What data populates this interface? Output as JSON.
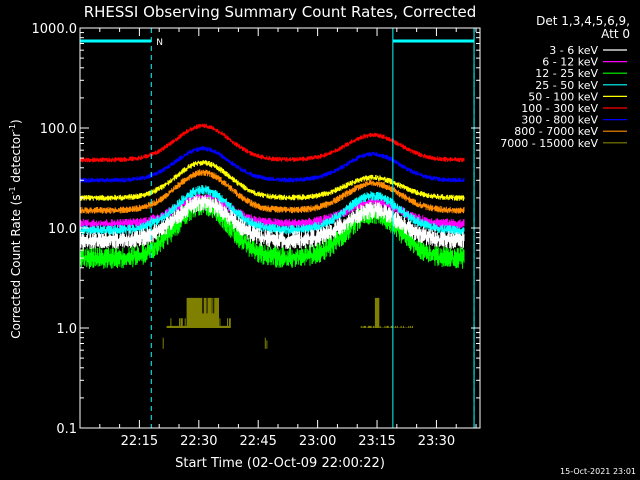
{
  "chart_data": {
    "type": "line",
    "title": "RHESSI Observing Summary Count Rates, Corrected",
    "xlabel": "Start Time (02-Oct-09 22:00:22)",
    "ylabel_main": "Corrected Count Rate (s",
    "ylabel_sup1": "-1",
    "ylabel_mid": " detector",
    "ylabel_sup2": "-1",
    "ylabel_end": ")",
    "x_ticks": [
      "22:15",
      "22:30",
      "22:45",
      "23:00",
      "23:15",
      "23:30"
    ],
    "x_tick_minutes": [
      15,
      30,
      45,
      60,
      75,
      90
    ],
    "xlim_minutes": [
      0,
      101
    ],
    "y_scale": "log",
    "y_ticks": [
      "0.1",
      "1.0",
      "10.0",
      "100.0",
      "1000.0"
    ],
    "y_tick_values": [
      0.1,
      1,
      10,
      100,
      1000
    ],
    "ylim": [
      0.1,
      1000
    ],
    "legend_header": [
      "Det 1,3,4,5,6,9,",
      "Att 0"
    ],
    "legend_position": "right",
    "series": [
      {
        "name": "3 - 6 keV",
        "color": "#ffffff",
        "base": 7.5,
        "peak1": 18,
        "peak2": 15
      },
      {
        "name": "6 - 12 keV",
        "color": "#ff00ff",
        "base": 11,
        "peak1": 20,
        "peak2": 18
      },
      {
        "name": "12 - 25 keV",
        "color": "#00ff00",
        "base": 5,
        "peak1": 17,
        "peak2": 14
      },
      {
        "name": "25 - 50 keV",
        "color": "#00ffff",
        "base": 9.5,
        "peak1": 24,
        "peak2": 21
      },
      {
        "name": "50 - 100 keV",
        "color": "#ffff00",
        "base": 20,
        "peak1": 45,
        "peak2": 32
      },
      {
        "name": "100 - 300 keV",
        "color": "#ff0000",
        "base": 48,
        "peak1": 105,
        "peak2": 85
      },
      {
        "name": "300 - 800 keV",
        "color": "#0000ff",
        "base": 30,
        "peak1": 62,
        "peak2": 55
      },
      {
        "name": "800 - 7000 keV",
        "color": "#ff8c00",
        "base": 15,
        "peak1": 36,
        "peak2": 28
      },
      {
        "name": "7000 - 15000 keV",
        "color": "#808000",
        "base": 1.0,
        "peak1": 2.0,
        "peak2": 2.0
      }
    ],
    "flag_label": "N",
    "markers": {
      "night_solid_minutes": [
        0,
        79,
        99.5
      ],
      "saa_dashed_minutes": [
        18,
        99.5
      ],
      "flag_bar_minutes": [
        [
          0,
          18
        ],
        [
          79,
          99.5
        ]
      ]
    }
  },
  "footer_date": "15-Oct-2021 23:01",
  "colors": {
    "background": "#000000",
    "axes": "#ffffff",
    "marker": "#00ffff"
  }
}
